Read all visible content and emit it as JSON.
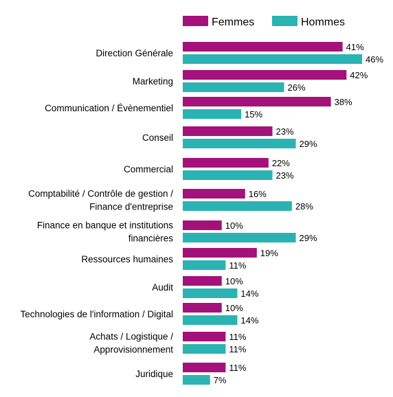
{
  "chart_data": {
    "type": "bar",
    "orientation": "horizontal",
    "legend_position": "top",
    "grid": false,
    "xlim": [
      0,
      50
    ],
    "categories": [
      [
        "Direction Générale"
      ],
      [
        "Marketing"
      ],
      [
        "Communication / Évènementiel"
      ],
      [
        "Conseil"
      ],
      [
        "Commercial"
      ],
      [
        "Comptabilité / Contrôle de gestion /",
        "Finance d'entreprise"
      ],
      [
        "Finance en banque et institutions",
        "financières"
      ],
      [
        "Ressources humaines"
      ],
      [
        "Audit"
      ],
      [
        "Technologies de l'information / Digital"
      ],
      [
        "Achats / Logistique /",
        "Approvisionnement"
      ],
      [
        "Juridique"
      ]
    ],
    "series": [
      {
        "name": "Femmes",
        "color": "#a5117a",
        "values": [
          41,
          42,
          38,
          23,
          22,
          16,
          10,
          19,
          10,
          10,
          11,
          11
        ],
        "labels": [
          "41%",
          "42%",
          "38%",
          "23%",
          "22%",
          "16%",
          "10%",
          "19%",
          "10%",
          "10%",
          "11%",
          "11%"
        ]
      },
      {
        "name": "Hommes",
        "color": "#2bb3b3",
        "values": [
          46,
          26,
          15,
          29,
          23,
          28,
          29,
          11,
          14,
          14,
          11,
          7
        ],
        "labels": [
          "46%",
          "26%",
          "15%",
          "29%",
          "23%",
          "28%",
          "29%",
          "11%",
          "14%",
          "14%",
          "11%",
          "7%"
        ]
      }
    ]
  }
}
